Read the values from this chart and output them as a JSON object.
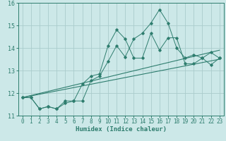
{
  "title": "",
  "xlabel": "Humidex (Indice chaleur)",
  "background_color": "#cce8e8",
  "line_color": "#2e7d6e",
  "xlim": [
    -0.5,
    23.5
  ],
  "ylim": [
    11,
    16
  ],
  "xticks": [
    0,
    1,
    2,
    3,
    4,
    5,
    6,
    7,
    8,
    9,
    10,
    11,
    12,
    13,
    14,
    15,
    16,
    17,
    18,
    19,
    20,
    21,
    22,
    23
  ],
  "yticks": [
    11,
    12,
    13,
    14,
    15,
    16
  ],
  "grid_color": "#aacccc",
  "series1_x": [
    0,
    1,
    2,
    3,
    4,
    5,
    6,
    7,
    8,
    9,
    10,
    11,
    12,
    13,
    14,
    15,
    16,
    17,
    18,
    19,
    20,
    21,
    22,
    23
  ],
  "series1_y": [
    11.8,
    11.8,
    11.3,
    11.4,
    11.3,
    11.55,
    11.65,
    11.65,
    12.55,
    12.75,
    13.4,
    14.1,
    13.6,
    14.4,
    14.65,
    15.1,
    15.7,
    15.1,
    14.0,
    13.55,
    13.7,
    13.55,
    13.25,
    13.55
  ],
  "series2_x": [
    0,
    1,
    2,
    3,
    4,
    5,
    6,
    7,
    8,
    9,
    10,
    11,
    12,
    13,
    14,
    15,
    16,
    17,
    18,
    19,
    20,
    21,
    22,
    23
  ],
  "series2_y": [
    11.8,
    11.8,
    11.3,
    11.4,
    11.3,
    11.65,
    11.65,
    12.4,
    12.75,
    12.85,
    14.1,
    14.8,
    14.4,
    13.55,
    13.55,
    14.65,
    13.9,
    14.45,
    14.45,
    13.3,
    13.3,
    13.55,
    13.8,
    13.55
  ],
  "trend1_x": [
    0,
    23
  ],
  "trend1_y": [
    11.8,
    13.5
  ],
  "trend2_x": [
    0,
    23
  ],
  "trend2_y": [
    11.8,
    13.9
  ]
}
